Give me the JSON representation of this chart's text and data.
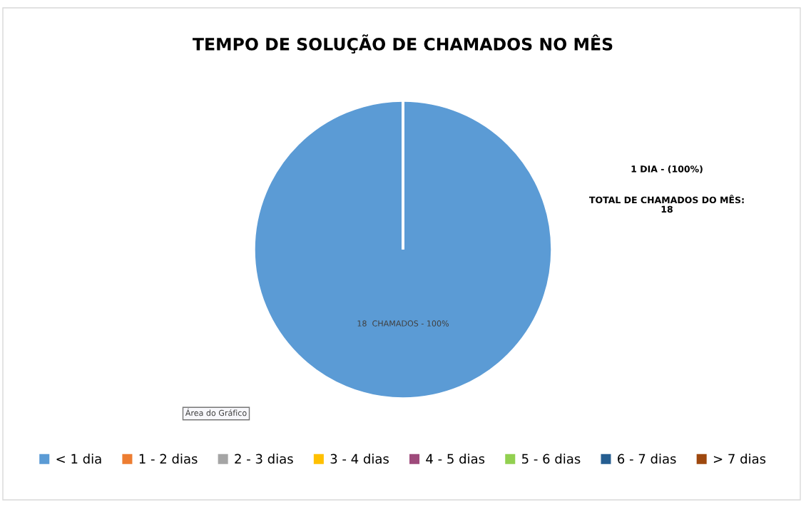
{
  "chart_data": {
    "type": "pie",
    "title": "TEMPO DE SOLUÇÃO DE CHAMADOS NO MÊS",
    "categories": [
      "< 1 dia",
      "1 - 2 dias",
      "2 - 3 dias",
      "3 - 4 dias",
      "4 - 5 dias",
      "5 - 6 dias",
      "6 - 7 dias",
      "> 7 dias"
    ],
    "values": [
      18,
      0,
      0,
      0,
      0,
      0,
      0,
      0
    ],
    "colors": [
      "#5b9bd5",
      "#ed7d31",
      "#a5a5a5",
      "#ffc000",
      "#9e4a7b",
      "#92d050",
      "#255e91",
      "#9e480e"
    ],
    "value_labels": [
      "18  CHAMADOS - 100%",
      null,
      null,
      null,
      null,
      null,
      null,
      null
    ],
    "annotations": [
      "1 DIA - (100%)",
      "TOTAL DE CHAMADOS DO MÊS:\n18",
      "Área do Gráfico"
    ],
    "legend": "bottom"
  }
}
